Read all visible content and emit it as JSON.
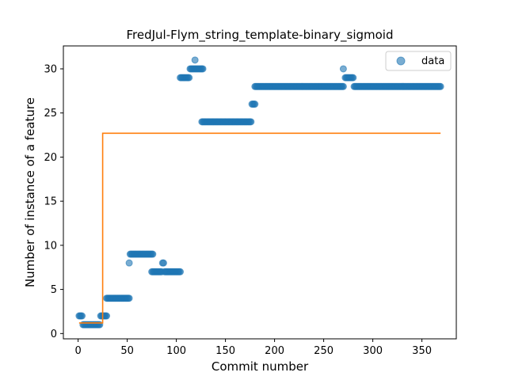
{
  "chart_data": {
    "type": "scatter",
    "title": "FredJul-Flym_string_template-binary_sigmoid",
    "xlabel": "Commit number",
    "ylabel": "Number of instance of a feature",
    "xlim": [
      -15,
      385
    ],
    "ylim": [
      -0.6,
      32.6
    ],
    "xticks": [
      0,
      50,
      100,
      150,
      200,
      250,
      300,
      350
    ],
    "yticks": [
      0,
      5,
      10,
      15,
      20,
      25,
      30
    ],
    "grid": false,
    "legend": {
      "placement": "top-right",
      "entries": [
        "data"
      ]
    },
    "series": [
      {
        "name": "data",
        "kind": "scatter",
        "color": "#1f77b4",
        "alpha": 0.6,
        "segments": [
          {
            "x_start": 1,
            "x_end": 4,
            "y": 2
          },
          {
            "x_start": 5,
            "x_end": 22,
            "y": 1
          },
          {
            "x_start": 23,
            "x_end": 29,
            "y": 2
          },
          {
            "x_start": 29,
            "x_end": 52,
            "y": 4
          },
          {
            "x_start": 52,
            "x_end": 52,
            "y": 8
          },
          {
            "x_start": 53,
            "x_end": 76,
            "y": 9
          },
          {
            "x_start": 75,
            "x_end": 85,
            "y": 7
          },
          {
            "x_start": 86,
            "x_end": 87,
            "y": 8
          },
          {
            "x_start": 88,
            "x_end": 104,
            "y": 7
          },
          {
            "x_start": 104,
            "x_end": 113,
            "y": 29
          },
          {
            "x_start": 114,
            "x_end": 127,
            "y": 30
          },
          {
            "x_start": 119,
            "x_end": 119,
            "y": 31
          },
          {
            "x_start": 126,
            "x_end": 176,
            "y": 24
          },
          {
            "x_start": 177,
            "x_end": 180,
            "y": 26
          },
          {
            "x_start": 180,
            "x_end": 270,
            "y": 28
          },
          {
            "x_start": 270,
            "x_end": 270,
            "y": 30
          },
          {
            "x_start": 272,
            "x_end": 280,
            "y": 29
          },
          {
            "x_start": 281,
            "x_end": 369,
            "y": 28
          }
        ]
      },
      {
        "name": "",
        "kind": "line",
        "color": "#ff7f0e",
        "x": [
          1,
          25,
          25,
          369
        ],
        "y": [
          1.2,
          1.2,
          22.7,
          22.7
        ]
      }
    ]
  }
}
